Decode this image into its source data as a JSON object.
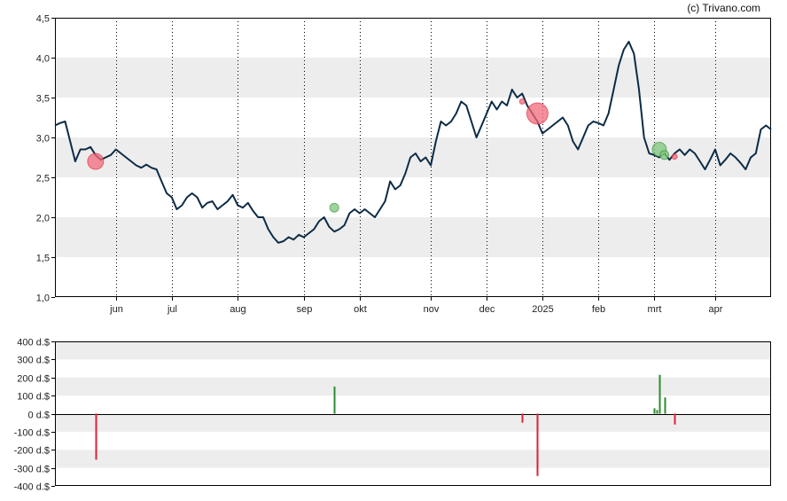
{
  "credit": "(c) Trivano.com",
  "colors": {
    "line": "#0c2b45",
    "band": "#ededed",
    "buy": "#2e8b2e",
    "sell": "#e0203a",
    "buy_marker": "#7cc47c",
    "sell_marker": "#f06a7a"
  },
  "chart_data": [
    {
      "type": "line",
      "ylim": [
        1.0,
        4.5
      ],
      "yticks": [
        "1,0",
        "1,5",
        "2,0",
        "2,5",
        "3,0",
        "3,5",
        "4,0",
        "4,5"
      ],
      "xticks": [
        "jun",
        "jul",
        "aug",
        "sep",
        "okt",
        "nov",
        "dec",
        "2025",
        "feb",
        "mrt",
        "apr"
      ],
      "series": [
        {
          "points": [
            [
              0,
              3.15
            ],
            [
              1,
              3.18
            ],
            [
              2,
              3.2
            ],
            [
              3,
              2.95
            ],
            [
              4,
              2.7
            ],
            [
              5,
              2.85
            ],
            [
              6,
              2.85
            ],
            [
              7,
              2.88
            ],
            [
              8,
              2.78
            ],
            [
              9,
              2.72
            ],
            [
              10,
              2.75
            ],
            [
              11,
              2.78
            ],
            [
              12,
              2.85
            ],
            [
              13,
              2.8
            ],
            [
              14,
              2.75
            ],
            [
              15,
              2.7
            ],
            [
              16,
              2.65
            ],
            [
              17,
              2.62
            ],
            [
              18,
              2.66
            ],
            [
              19,
              2.62
            ],
            [
              20,
              2.6
            ],
            [
              21,
              2.45
            ],
            [
              22,
              2.3
            ],
            [
              23,
              2.25
            ],
            [
              24,
              2.1
            ],
            [
              25,
              2.15
            ],
            [
              26,
              2.25
            ],
            [
              27,
              2.3
            ],
            [
              28,
              2.25
            ],
            [
              29,
              2.12
            ],
            [
              30,
              2.18
            ],
            [
              31,
              2.2
            ],
            [
              32,
              2.1
            ],
            [
              33,
              2.15
            ],
            [
              34,
              2.2
            ],
            [
              35,
              2.28
            ],
            [
              36,
              2.15
            ],
            [
              37,
              2.12
            ],
            [
              38,
              2.18
            ],
            [
              39,
              2.08
            ],
            [
              40,
              2.0
            ],
            [
              41,
              2.0
            ],
            [
              42,
              1.85
            ],
            [
              43,
              1.75
            ],
            [
              44,
              1.68
            ],
            [
              45,
              1.7
            ],
            [
              46,
              1.75
            ],
            [
              47,
              1.72
            ],
            [
              48,
              1.78
            ],
            [
              49,
              1.75
            ],
            [
              50,
              1.8
            ],
            [
              51,
              1.85
            ],
            [
              52,
              1.95
            ],
            [
              53,
              2.0
            ],
            [
              54,
              1.88
            ],
            [
              55,
              1.82
            ],
            [
              56,
              1.85
            ],
            [
              57,
              1.9
            ],
            [
              58,
              2.05
            ],
            [
              59,
              2.1
            ],
            [
              60,
              2.05
            ],
            [
              61,
              2.1
            ],
            [
              62,
              2.05
            ],
            [
              63,
              2.0
            ],
            [
              64,
              2.1
            ],
            [
              65,
              2.2
            ],
            [
              66,
              2.45
            ],
            [
              67,
              2.35
            ],
            [
              68,
              2.4
            ],
            [
              69,
              2.55
            ],
            [
              70,
              2.75
            ],
            [
              71,
              2.8
            ],
            [
              72,
              2.7
            ],
            [
              73,
              2.75
            ],
            [
              74,
              2.65
            ],
            [
              75,
              2.95
            ],
            [
              76,
              3.2
            ],
            [
              77,
              3.15
            ],
            [
              78,
              3.2
            ],
            [
              79,
              3.3
            ],
            [
              80,
              3.45
            ],
            [
              81,
              3.4
            ],
            [
              82,
              3.2
            ],
            [
              83,
              3.0
            ],
            [
              84,
              3.15
            ],
            [
              85,
              3.3
            ],
            [
              86,
              3.45
            ],
            [
              87,
              3.35
            ],
            [
              88,
              3.45
            ],
            [
              89,
              3.4
            ],
            [
              90,
              3.6
            ],
            [
              91,
              3.5
            ],
            [
              92,
              3.55
            ],
            [
              93,
              3.4
            ],
            [
              94,
              3.3
            ],
            [
              95,
              3.2
            ],
            [
              96,
              3.05
            ],
            [
              97,
              3.1
            ],
            [
              98,
              3.15
            ],
            [
              99,
              3.2
            ],
            [
              100,
              3.25
            ],
            [
              101,
              3.15
            ],
            [
              102,
              2.95
            ],
            [
              103,
              2.85
            ],
            [
              104,
              3.0
            ],
            [
              105,
              3.15
            ],
            [
              106,
              3.2
            ],
            [
              107,
              3.18
            ],
            [
              108,
              3.15
            ],
            [
              109,
              3.3
            ],
            [
              110,
              3.6
            ],
            [
              111,
              3.9
            ],
            [
              112,
              4.1
            ],
            [
              113,
              4.2
            ],
            [
              114,
              4.05
            ],
            [
              115,
              3.6
            ],
            [
              116,
              3.0
            ],
            [
              117,
              2.8
            ],
            [
              118,
              2.78
            ],
            [
              119,
              2.75
            ],
            [
              120,
              2.8
            ],
            [
              121,
              2.72
            ],
            [
              122,
              2.8
            ],
            [
              123,
              2.85
            ],
            [
              124,
              2.78
            ],
            [
              125,
              2.85
            ],
            [
              126,
              2.8
            ],
            [
              127,
              2.7
            ],
            [
              128,
              2.6
            ],
            [
              129,
              2.72
            ],
            [
              130,
              2.85
            ],
            [
              131,
              2.65
            ],
            [
              132,
              2.72
            ],
            [
              133,
              2.8
            ],
            [
              134,
              2.75
            ],
            [
              135,
              2.68
            ],
            [
              136,
              2.6
            ],
            [
              137,
              2.75
            ],
            [
              138,
              2.8
            ],
            [
              139,
              3.1
            ],
            [
              140,
              3.15
            ],
            [
              141,
              3.1
            ]
          ]
        }
      ],
      "month_x": [
        12,
        23,
        36,
        49,
        60,
        74,
        85,
        96,
        107,
        118,
        130
      ],
      "markers": [
        {
          "x": 8,
          "y": 2.7,
          "kind": "sell",
          "size": 9
        },
        {
          "x": 55,
          "y": 2.12,
          "kind": "buy",
          "size": 5
        },
        {
          "x": 92,
          "y": 3.45,
          "kind": "sell",
          "size": 3
        },
        {
          "x": 95,
          "y": 3.3,
          "kind": "sell",
          "size": 12
        },
        {
          "x": 119,
          "y": 2.85,
          "kind": "buy",
          "size": 8
        },
        {
          "x": 120,
          "y": 2.78,
          "kind": "buy",
          "size": 5
        },
        {
          "x": 122,
          "y": 2.76,
          "kind": "sell",
          "size": 3
        }
      ],
      "grid": true
    },
    {
      "type": "bar",
      "ylim": [
        -400,
        400
      ],
      "yticks": [
        "-400 d.$",
        "-300 d.$",
        "-200 d.$",
        "-100 d.$",
        "0 d.$",
        "100 d.$",
        "200 d.$",
        "300 d.$",
        "400 d.$"
      ],
      "bars": [
        {
          "x": 8,
          "value": -255
        },
        {
          "x": 55,
          "value": 150
        },
        {
          "x": 92,
          "value": -50
        },
        {
          "x": 95,
          "value": -345
        },
        {
          "x": 118,
          "value": 30
        },
        {
          "x": 118.5,
          "value": 20
        },
        {
          "x": 119,
          "value": 215
        },
        {
          "x": 120,
          "value": 90
        },
        {
          "x": 122,
          "value": -60
        }
      ],
      "grid": true
    }
  ]
}
